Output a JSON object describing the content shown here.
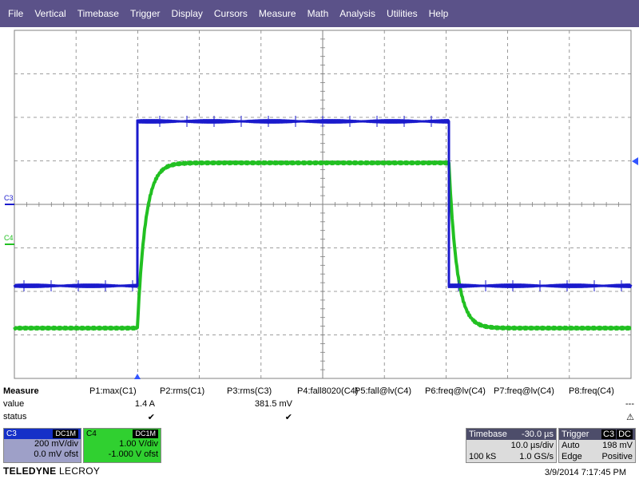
{
  "menu": [
    "File",
    "Vertical",
    "Timebase",
    "Trigger",
    "Display",
    "Cursors",
    "Measure",
    "Math",
    "Analysis",
    "Utilities",
    "Help"
  ],
  "grid": {
    "channel_labels": {
      "c3": "C3",
      "c4": "C4"
    },
    "colors": {
      "c3": "#1a1acc",
      "c4": "#22c022",
      "grid": "#808080",
      "trigger_marker": "#3355ff"
    }
  },
  "measure": {
    "title": "Measure",
    "row_labels": {
      "value": "value",
      "status": "status"
    },
    "params": [
      {
        "name": "P1:max(C1)",
        "value": "1.4 A",
        "status": "✔"
      },
      {
        "name": "P2:rms(C1)",
        "value": "",
        "status": ""
      },
      {
        "name": "P3:rms(C3)",
        "value": "381.5 mV",
        "status": "✔"
      },
      {
        "name": "P4:fall8020(C4)",
        "value": "",
        "status": ""
      },
      {
        "name": "P5:fall@lv(C4)",
        "value": "",
        "status": ""
      },
      {
        "name": "P6:freq@lv(C4)",
        "value": "",
        "status": ""
      },
      {
        "name": "P7:freq@lv(C4)",
        "value": "",
        "status": ""
      },
      {
        "name": "P8:freq(C4)",
        "value": "---",
        "status": "⚠"
      }
    ]
  },
  "channels": {
    "c3": {
      "label": "C3",
      "coupling": "DC1M",
      "vdiv": "200 mV/div",
      "offset": "0.0 mV ofst"
    },
    "c4": {
      "label": "C4",
      "coupling": "DC1M",
      "vdiv": "1.00 V/div",
      "offset": "-1.000 V ofst"
    }
  },
  "timebase": {
    "label": "Timebase",
    "delay": "-30.0 µs",
    "tdiv": "10.0 µs/div",
    "samples": "100 kS",
    "rate": "1.0 GS/s"
  },
  "trigger": {
    "label": "Trigger",
    "source": "C3",
    "coupling": "DC",
    "mode": "Auto",
    "level": "198 mV",
    "type": "Edge",
    "slope": "Positive"
  },
  "brand": {
    "bold": "TELEDYNE",
    "rest": " LECROY"
  },
  "datetime": "3/9/2014 7:17:45 PM"
}
